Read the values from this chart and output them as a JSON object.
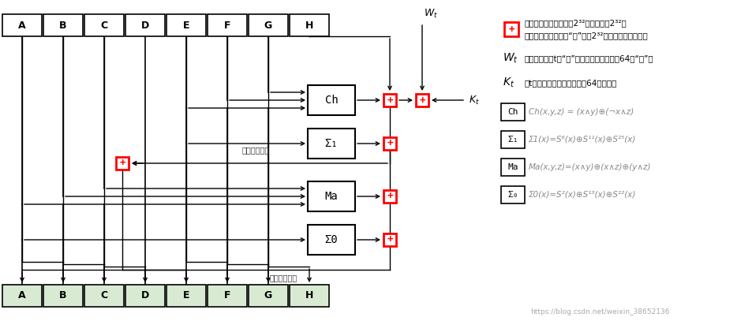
{
  "bg_color": "#ffffff",
  "top_labels": [
    "A",
    "B",
    "C",
    "D",
    "E",
    "F",
    "G",
    "H"
  ],
  "bottom_labels": [
    "A",
    "B",
    "C",
    "D",
    "E",
    "F",
    "G",
    "H"
  ],
  "bottom_box_color": "#d9ead3",
  "url": "https://blog.csdn.net/weixin_38652136",
  "legend_plus_text1": "将多个数字相加，并对2³²取模，由于2³²是",
  "legend_plus_text2": "很大的一个数字，若“和”小于2³²则取模结果为本身。",
  "legend_Wt_text": "当前区块的第t个“字”，由消息构造出来的64个“字”。",
  "legend_Kt_text": "第t个密鑰，对应初始定义的64个变量。",
  "legend_Ch_formula": "Ch(x,y,z) = (x∧y)⊕(¬x∧z)",
  "legend_S1_formula": "Σ1(x)=S⁶(x)⊕S¹¹(x)⊕S²⁵(x)",
  "legend_Ma_formula": "Ma(x,y,z)=(x∧y)⊕(x∧z)⊕(y∧z)",
  "legend_S0_formula": "Σ0(x)=S²(x)⊕S¹³(x)⊕S²²(x)"
}
